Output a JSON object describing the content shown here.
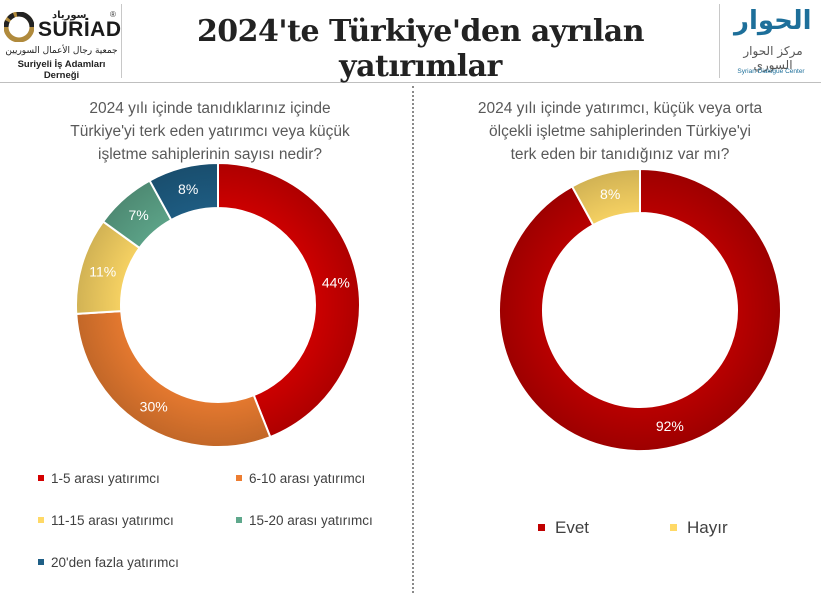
{
  "header": {
    "title": "2024'te Türkiye'den ayrılan yatırımlar",
    "left_logo": {
      "arabic_top": "سورياد",
      "brand": "SURİAD",
      "registered": "®",
      "arabic_sub": "جمعية رجال الأعمال السوريين",
      "subtitle": "Suriyeli İş Adamları Derneği"
    },
    "right_logo": {
      "arabic_mark": "الحوار",
      "arabic_name": "مركز الحوار السوري",
      "english_name": "Syrian Dialogue Center"
    }
  },
  "chart_data": [
    {
      "type": "pie",
      "donut": true,
      "title": "2024 yılı içinde tanıdıklarınız içinde Türkiye'yi terk eden yatırımcı veya küçük işletme sahiplerinin sayısı nedir?",
      "title_lines": [
        "2024 yılı içinde tanıdıklarınız içinde",
        "Türkiye'yi terk eden yatırımcı veya küçük",
        "işletme sahiplerinin sayısı nedir?"
      ],
      "categories": [
        "1-5 arası yatırımcı",
        "6-10 arası yatırımcı",
        "11-15 arası yatırımcı",
        "15-20 arası yatırımcı",
        "20'den fazla yatırımcı"
      ],
      "values": [
        44,
        30,
        11,
        7,
        8
      ],
      "labels": [
        "44%",
        "30%",
        "11%",
        "7%",
        "8%"
      ],
      "colors": [
        "#d40000",
        "#ed7d31",
        "#ffd966",
        "#5fa88c",
        "#1f5f86"
      ],
      "legend_position": "bottom"
    },
    {
      "type": "pie",
      "donut": true,
      "title": "2024 yılı içinde yatırımcı, küçük veya orta ölçekli işletme sahiplerinden Türkiye'yi terk eden bir tanıdığınız var mı?",
      "title_lines": [
        "2024 yılı içinde yatırımcı, küçük veya orta",
        "ölçekli işletme sahiplerinden Türkiye'yi",
        "terk eden bir tanıdığınız var mı?"
      ],
      "categories": [
        "Evet",
        "Hayır"
      ],
      "values": [
        92,
        8
      ],
      "labels": [
        "92%",
        "8%"
      ],
      "colors": [
        "#c00000",
        "#ffd966"
      ],
      "legend_position": "bottom"
    }
  ]
}
